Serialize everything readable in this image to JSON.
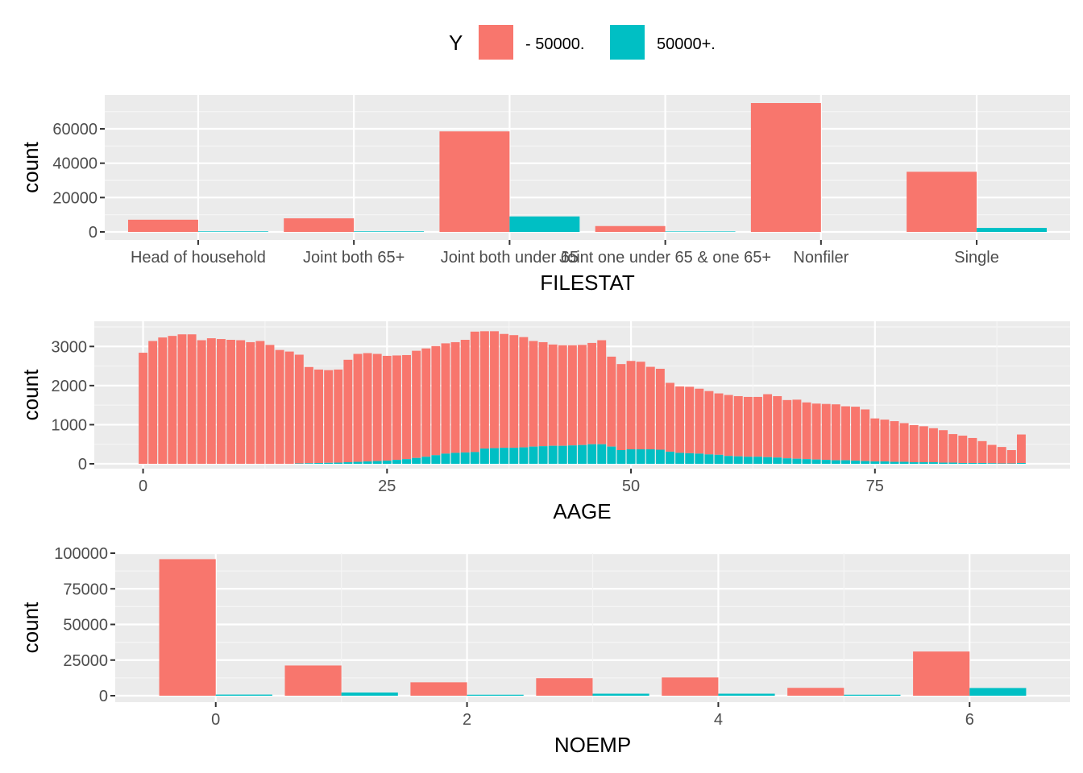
{
  "legend": {
    "title": "Y",
    "items": [
      {
        "label": "- 50000.",
        "color": "#F8766D"
      },
      {
        "label": "50000+.",
        "color": "#00BFC4"
      }
    ]
  },
  "chart_data": [
    {
      "type": "bar",
      "title": "",
      "xlabel": "FILESTAT",
      "ylabel": "count",
      "ylim": [
        0,
        75000
      ],
      "yticks": [
        0,
        20000,
        40000,
        60000
      ],
      "grid": true,
      "legend_position": "top",
      "categories": [
        "Head of household",
        "Joint both 65+",
        "Joint both under 65",
        "Joint one under 65 & one 65+",
        "Nonfiler",
        "Single"
      ],
      "series": [
        {
          "name": "- 50000.",
          "color": "#F8766D",
          "values": [
            7100,
            7900,
            58500,
            3400,
            75000,
            35000
          ]
        },
        {
          "name": "50000+.",
          "color": "#00BFC4",
          "values": [
            330,
            340,
            9000,
            280,
            0,
            2300
          ]
        }
      ]
    },
    {
      "type": "bar",
      "title": "",
      "xlabel": "AAGE",
      "ylabel": "count",
      "ylim": [
        0,
        3500
      ],
      "xlim": [
        -5,
        95
      ],
      "xticks": [
        0,
        25,
        50,
        75
      ],
      "yticks": [
        0,
        1000,
        2000,
        3000
      ],
      "grid": true,
      "stacked": true,
      "x": [
        0,
        1,
        2,
        3,
        4,
        5,
        6,
        7,
        8,
        9,
        10,
        11,
        12,
        13,
        14,
        15,
        16,
        17,
        18,
        19,
        20,
        21,
        22,
        23,
        24,
        25,
        26,
        27,
        28,
        29,
        30,
        31,
        32,
        33,
        34,
        35,
        36,
        37,
        38,
        39,
        40,
        41,
        42,
        43,
        44,
        45,
        46,
        47,
        48,
        49,
        50,
        51,
        52,
        53,
        54,
        55,
        56,
        57,
        58,
        59,
        60,
        61,
        62,
        63,
        64,
        65,
        66,
        67,
        68,
        69,
        70,
        71,
        72,
        73,
        74,
        75,
        76,
        77,
        78,
        79,
        80,
        81,
        82,
        83,
        84,
        85,
        86,
        87,
        88,
        89,
        90
      ],
      "series": [
        {
          "name": "- 50000.",
          "color": "#F8766D",
          "values": [
            2840,
            3140,
            3230,
            3270,
            3310,
            3310,
            3160,
            3210,
            3190,
            3170,
            3160,
            3110,
            3140,
            3040,
            2910,
            2870,
            2780,
            2460,
            2390,
            2370,
            2380,
            2620,
            2760,
            2770,
            2740,
            2680,
            2670,
            2660,
            2740,
            2770,
            2790,
            2820,
            2830,
            2880,
            3080,
            3000,
            2990,
            2910,
            2880,
            2820,
            2700,
            2660,
            2590,
            2570,
            2560,
            2560,
            2590,
            2660,
            2300,
            2200,
            2260,
            2240,
            2110,
            2070,
            1760,
            1700,
            1700,
            1660,
            1620,
            1570,
            1560,
            1540,
            1530,
            1530,
            1610,
            1570,
            1490,
            1510,
            1450,
            1430,
            1430,
            1430,
            1380,
            1380,
            1320,
            1100,
            1070,
            1040,
            990,
            950,
            920,
            870,
            830,
            730,
            700,
            640,
            560,
            470,
            420,
            340,
            730
          ]
        },
        {
          "name": "50000+.",
          "color": "#00BFC4",
          "values": [
            0,
            0,
            0,
            0,
            0,
            0,
            0,
            0,
            0,
            0,
            0,
            0,
            0,
            0,
            0,
            0,
            10,
            15,
            20,
            25,
            30,
            40,
            50,
            60,
            70,
            80,
            100,
            120,
            150,
            180,
            220,
            260,
            280,
            290,
            300,
            390,
            400,
            410,
            410,
            420,
            440,
            450,
            460,
            460,
            470,
            480,
            500,
            500,
            440,
            350,
            370,
            370,
            370,
            360,
            310,
            280,
            270,
            260,
            240,
            230,
            200,
            190,
            180,
            180,
            170,
            160,
            140,
            130,
            120,
            110,
            100,
            90,
            90,
            80,
            70,
            60,
            60,
            50,
            50,
            40,
            40,
            40,
            30,
            30,
            20,
            20,
            20,
            15,
            10,
            10,
            20
          ]
        }
      ]
    },
    {
      "type": "bar",
      "title": "",
      "xlabel": "NOEMP",
      "ylabel": "count",
      "ylim": [
        0,
        100000
      ],
      "xlim": [
        -0.8,
        6.8
      ],
      "xticks": [
        0,
        2,
        4,
        6
      ],
      "yticks": [
        0,
        25000,
        50000,
        75000,
        100000
      ],
      "grid": true,
      "categories": [
        0,
        1,
        2,
        3,
        4,
        5,
        6
      ],
      "series": [
        {
          "name": "- 50000.",
          "color": "#F8766D",
          "values": [
            95800,
            21200,
            9400,
            12300,
            12800,
            5500,
            31000
          ]
        },
        {
          "name": "50000+.",
          "color": "#00BFC4",
          "values": [
            800,
            2200,
            700,
            1400,
            1400,
            700,
            5400
          ]
        }
      ]
    }
  ]
}
